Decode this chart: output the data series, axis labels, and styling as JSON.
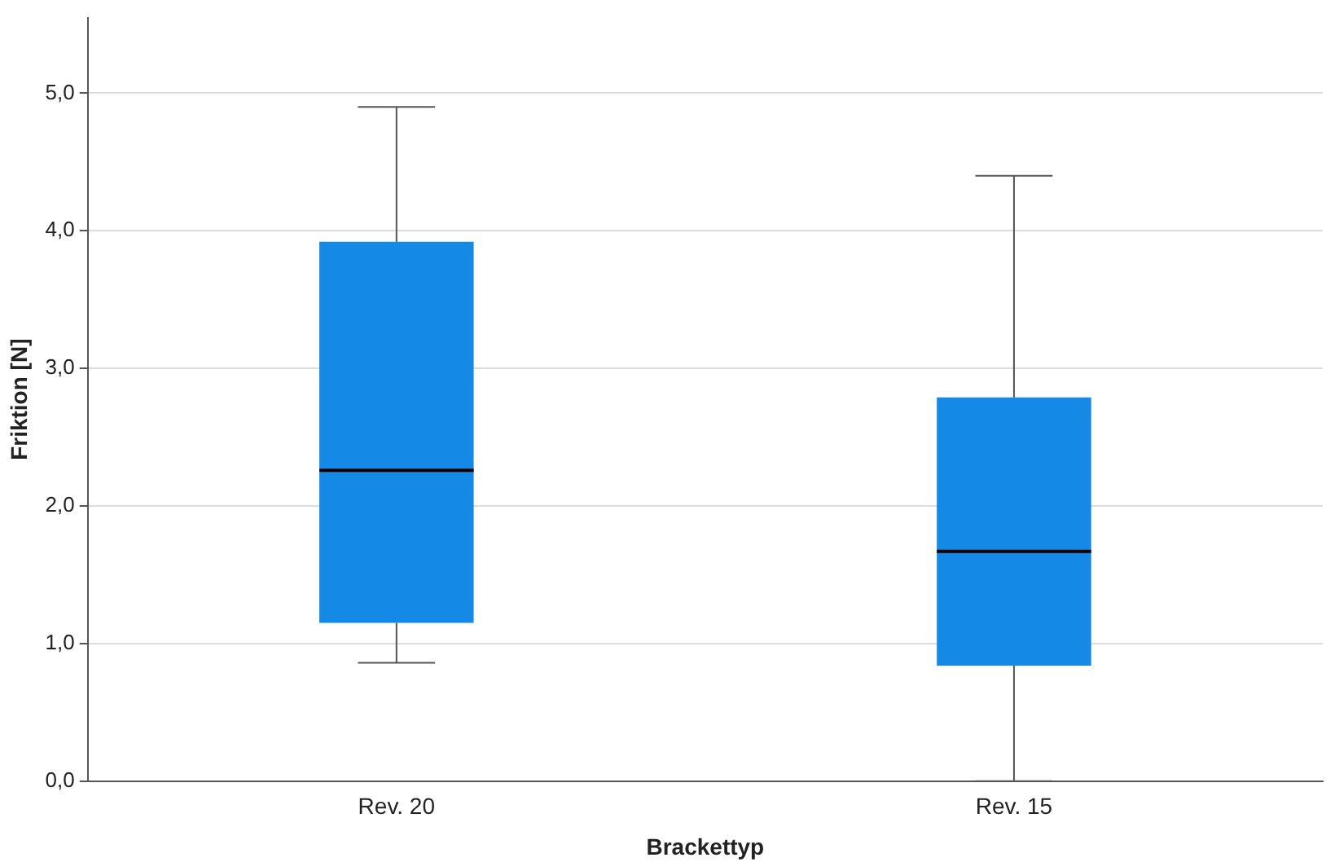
{
  "chart_data": {
    "type": "box",
    "xlabel": "Brackettyp",
    "ylabel": "Friktion [N]",
    "categories": [
      "Rev. 20",
      "Rev. 15"
    ],
    "boxes": [
      {
        "low": 0.86,
        "q1": 1.15,
        "median": 2.26,
        "q3": 3.92,
        "high": 4.9
      },
      {
        "low": 0.0,
        "q1": 0.84,
        "median": 1.67,
        "q3": 2.79,
        "high": 4.4
      }
    ],
    "color": "#1589e6",
    "ylim": [
      0,
      5.55
    ],
    "yticks": [
      {
        "value": 0,
        "label": "0,0"
      },
      {
        "value": 1,
        "label": "1,0"
      },
      {
        "value": 2,
        "label": "2,0"
      },
      {
        "value": 3,
        "label": "3,0"
      },
      {
        "value": 4,
        "label": "4,0"
      },
      {
        "value": 5,
        "label": "5,0"
      }
    ],
    "grid": "y",
    "legend": false
  }
}
